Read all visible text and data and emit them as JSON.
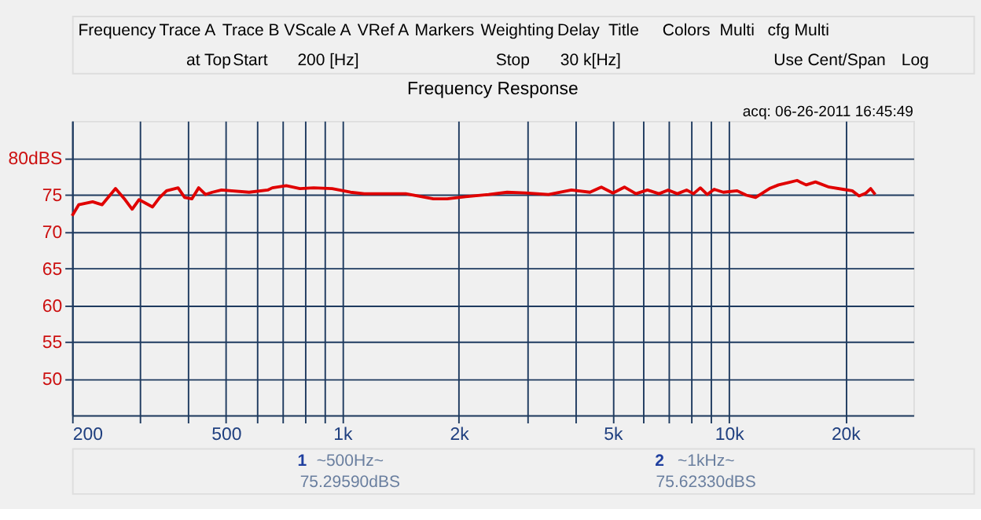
{
  "chart_data": {
    "type": "line",
    "title": "Frequency Response",
    "x": [
      200,
      208,
      226,
      239,
      259,
      274,
      286,
      298,
      310,
      323,
      337,
      351,
      376,
      391,
      408,
      425,
      443,
      461,
      487,
      574,
      641,
      659,
      716,
      777,
      843,
      941,
      1050,
      1140,
      1459,
      1720,
      1867,
      2084,
      2390,
      2668,
      2976,
      3414,
      3914,
      4369,
      4677,
      5010,
      5366,
      5746,
      6154,
      6592,
      6962,
      7355,
      7770,
      8097,
      8434,
      8790,
      9158,
      9672,
      10500,
      11090,
      11720,
      12730,
      13440,
      14200,
      15000,
      15840,
      16740,
      18160,
      19730,
      20840,
      21710,
      22630,
      23260,
      23900
    ],
    "series": [
      {
        "color": "#e00000",
        "values": [
          72.1,
          73.6,
          74.0,
          73.6,
          75.8,
          74.3,
          73.0,
          74.3,
          73.8,
          73.3,
          74.6,
          75.5,
          75.9,
          74.6,
          74.4,
          75.9,
          75.0,
          75.3,
          75.6,
          75.3,
          75.6,
          75.9,
          76.2,
          75.8,
          75.9,
          75.8,
          75.3,
          75.1,
          75.1,
          74.4,
          74.4,
          74.7,
          75.0,
          75.3,
          75.2,
          75.0,
          75.6,
          75.3,
          76.0,
          75.2,
          76.0,
          75.1,
          75.6,
          75.1,
          75.6,
          75.1,
          75.6,
          75.1,
          75.9,
          75.0,
          75.7,
          75.3,
          75.5,
          74.9,
          74.6,
          75.8,
          76.3,
          76.6,
          76.9,
          76.3,
          76.7,
          76.0,
          75.7,
          75.5,
          74.8,
          75.2,
          75.8,
          75.0
        ]
      }
    ],
    "xlim": [
      200,
      30000
    ],
    "ylim": [
      45,
      85
    ],
    "log": "x",
    "grid": true,
    "marker": "none",
    "line_style": "solid",
    "xticks": [
      200,
      {
        "value": 300,
        "label": null
      },
      {
        "value": 400,
        "label": null
      },
      500,
      {
        "value": 600,
        "label": null
      },
      {
        "value": 700,
        "label": null
      },
      {
        "value": 800,
        "label": null
      },
      {
        "value": 900,
        "label": null
      },
      {
        "value": 1000,
        "label": "1k"
      },
      {
        "value": 2000,
        "label": "2k"
      },
      {
        "value": 3000,
        "label": null
      },
      {
        "value": 4000,
        "label": null
      },
      {
        "value": 5000,
        "label": "5k"
      },
      {
        "value": 6000,
        "label": null
      },
      {
        "value": 7000,
        "label": null
      },
      {
        "value": 8000,
        "label": null
      },
      {
        "value": 9000,
        "label": null
      },
      {
        "value": 10000,
        "label": "10k"
      },
      {
        "value": 20000,
        "label": "20k"
      }
    ],
    "yticks": [
      50,
      55,
      60,
      65,
      70,
      75,
      {
        "value": 80,
        "label": "80dBS"
      }
    ],
    "annotations": [
      "Frequency",
      "Trace A",
      "Trace B",
      "VScale A",
      "VRef A",
      "Markers",
      "Weighting",
      "Delay",
      "Title",
      "Colors",
      "Multi",
      "cfg Multi",
      "at Top",
      "Start",
      "200 [Hz]",
      "Stop",
      "30 k[Hz]",
      "Use Cent/Span",
      "Log",
      "acq: 06-26-2011 16:45:49",
      "1",
      "~500Hz~",
      "75.29590dBS",
      "2",
      "~1kHz~",
      "75.62330dBS"
    ]
  }
}
